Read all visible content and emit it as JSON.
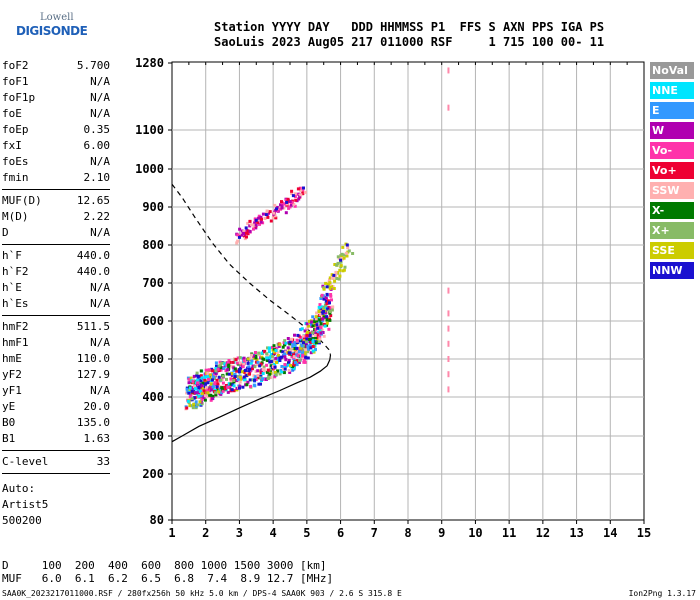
{
  "logo": {
    "line1": "Lowell",
    "line2": "DIGISONDE"
  },
  "header": {
    "line1": "Station YYYY DAY   DDD HHMMSS P1  FFS S AXN PPS IGA PS",
    "line2": "SaoLuis 2023 Aug05 217 011000 RSF     1 715 100 00- 11"
  },
  "params": {
    "group1": [
      {
        "label": "foF2",
        "value": "5.700"
      },
      {
        "label": "foF1",
        "value": "N/A"
      },
      {
        "label": "foF1p",
        "value": "N/A"
      },
      {
        "label": "foE",
        "value": "N/A"
      },
      {
        "label": "foEp",
        "value": "0.35"
      },
      {
        "label": "fxI",
        "value": "6.00"
      },
      {
        "label": "foEs",
        "value": "N/A"
      },
      {
        "label": "fmin",
        "value": "2.10"
      }
    ],
    "group2": [
      {
        "label": "MUF(D)",
        "value": "12.65"
      },
      {
        "label": "M(D)",
        "value": "2.22"
      },
      {
        "label": "D",
        "value": "N/A"
      }
    ],
    "group3": [
      {
        "label": "h`F",
        "value": "440.0"
      },
      {
        "label": "h`F2",
        "value": "440.0"
      },
      {
        "label": "h`E",
        "value": "N/A"
      },
      {
        "label": "h`Es",
        "value": "N/A"
      }
    ],
    "group4": [
      {
        "label": "hmF2",
        "value": "511.5"
      },
      {
        "label": "hmF1",
        "value": "N/A"
      },
      {
        "label": "hmE",
        "value": "110.0"
      },
      {
        "label": "yF2",
        "value": "127.9"
      },
      {
        "label": "yF1",
        "value": "N/A"
      },
      {
        "label": "yE",
        "value": "20.0"
      },
      {
        "label": "B0",
        "value": "135.0"
      },
      {
        "label": "B1",
        "value": "1.63"
      }
    ],
    "group5": [
      {
        "label": "C-level",
        "value": "33"
      }
    ]
  },
  "auto": {
    "line1": "Auto:",
    "line2": "Artist5",
    "line3": "500200"
  },
  "legend": [
    {
      "label": "NoVal",
      "color": "#999999"
    },
    {
      "label": "NNE",
      "color": "#00e5ff"
    },
    {
      "label": "E",
      "color": "#3399ff"
    },
    {
      "label": "W",
      "color": "#b000b0"
    },
    {
      "label": "Vo-",
      "color": "#ff33aa"
    },
    {
      "label": "Vo+",
      "color": "#ee0033"
    },
    {
      "label": "SSW",
      "color": "#ffb0b0"
    },
    {
      "label": "X-",
      "color": "#007a00"
    },
    {
      "label": "X+",
      "color": "#88bb66"
    },
    {
      "label": "SSE",
      "color": "#cccc00"
    },
    {
      "label": "NNW",
      "color": "#1a10d0"
    }
  ],
  "footer": {
    "line1": "D     100  200  400  600  800 1000 1500 3000 [km]",
    "line2": "MUF   6.0  6.1  6.2  6.5  6.8  7.4  8.9 12.7 [MHz]",
    "source": "SAA0K_2023217011000.RSF / 280fx256h 50 kHz 5.0 km / DPS-4 SAA0K 903 / 2.6 S 315.8 E",
    "version": "Ion2Png 1.3.17"
  },
  "chart_data": {
    "type": "scatter",
    "xlabel": "",
    "ylabel": "",
    "xlim": [
      1,
      15
    ],
    "ylim": [
      80,
      1300
    ],
    "x_ticks": [
      1,
      2,
      3,
      4,
      5,
      6,
      7,
      8,
      9,
      10,
      11,
      12,
      13,
      14,
      15
    ],
    "y_ticks": [
      80,
      200,
      300,
      400,
      500,
      600,
      700,
      800,
      900,
      1000,
      1100,
      1280
    ],
    "y_scale": "ionogram (non-linear, expanded below 800 km)",
    "grid": true,
    "series": [
      {
        "type": "profile-line",
        "style": "solid",
        "x": [
          1.0,
          1.3,
          1.8,
          2.4,
          3.0,
          3.6,
          4.2,
          4.7,
          5.1,
          5.4,
          5.6,
          5.68,
          5.7
        ],
        "y": [
          285,
          300,
          325,
          348,
          372,
          395,
          417,
          437,
          452,
          468,
          482,
          498,
          511
        ]
      },
      {
        "type": "profile-line",
        "style": "dashed",
        "x": [
          1.0,
          1.3,
          1.7,
          2.2,
          2.7,
          3.3,
          3.9,
          4.5,
          5.0,
          5.4,
          5.65,
          5.7
        ],
        "y": [
          960,
          925,
          870,
          805,
          750,
          700,
          655,
          615,
          580,
          550,
          525,
          511
        ]
      },
      {
        "type": "trace",
        "x": [
          1.5,
          1.6,
          1.8,
          2.0,
          2.2,
          2.4,
          2.7,
          3.0,
          3.3,
          3.6,
          3.9,
          4.2,
          4.5,
          4.7,
          4.9,
          5.1,
          5.3,
          5.5,
          5.6
        ],
        "y": [
          410,
          415,
          425,
          435,
          445,
          452,
          460,
          466,
          473,
          482,
          492,
          503,
          516,
          528,
          543,
          562,
          590,
          625,
          670
        ]
      },
      {
        "type": "trace-2nd-hop",
        "x": [
          3.0,
          3.2,
          3.5,
          3.8,
          4.1,
          4.4,
          4.6,
          4.9
        ],
        "y": [
          820,
          845,
          865,
          880,
          895,
          912,
          930,
          950
        ]
      },
      {
        "type": "trace-extension",
        "x": [
          5.6,
          5.8,
          6.0,
          6.2
        ],
        "y": [
          690,
          720,
          760,
          800
        ]
      },
      {
        "type": "interference",
        "x": [
          9.2,
          9.2,
          9.2,
          9.2,
          9.2,
          9.2,
          9.2,
          9.2,
          9.2
        ],
        "y": [
          420,
          460,
          500,
          540,
          580,
          620,
          680,
          1160,
          1260
        ]
      }
    ]
  }
}
